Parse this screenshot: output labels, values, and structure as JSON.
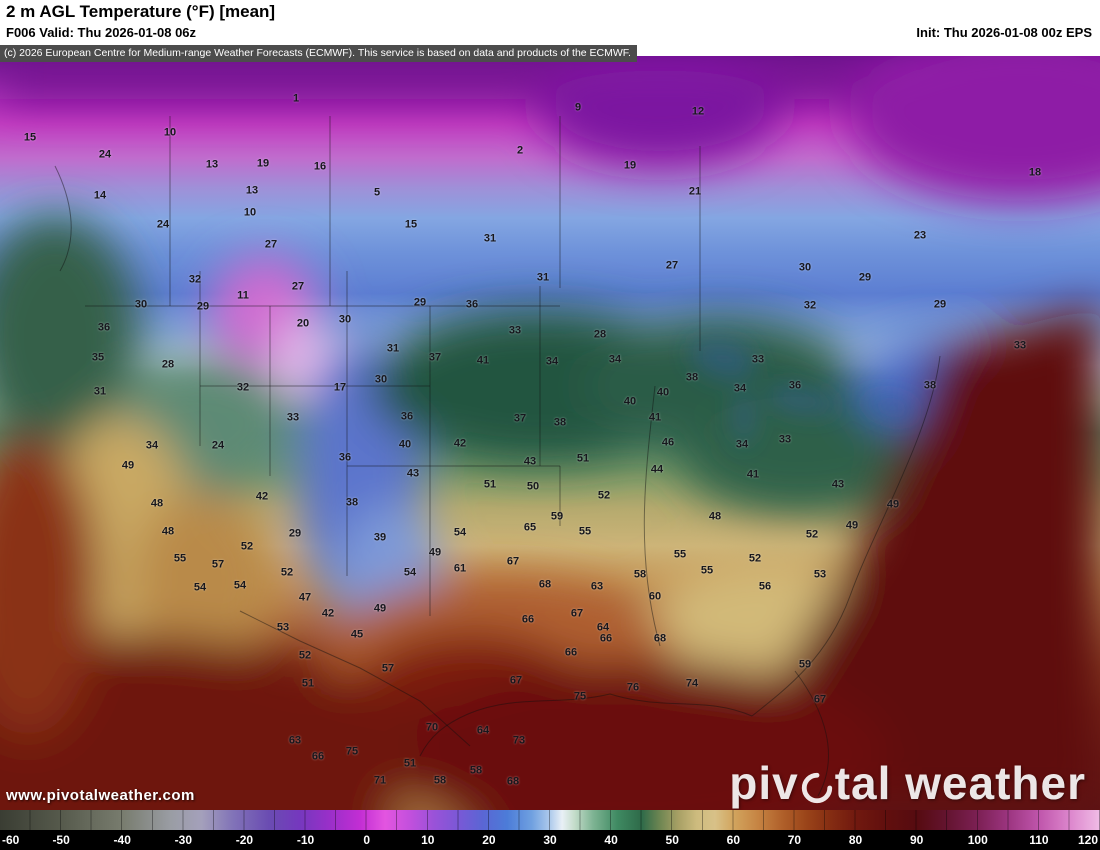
{
  "header": {
    "title": "2 m AGL Temperature (°F) [mean]",
    "valid": "F006 Valid: Thu 2026-01-08 06z",
    "init": "Init: Thu 2026-01-08 00z EPS"
  },
  "copyright": "(c) 2026 European Centre for Medium-range Weather Forecasts (ECMWF). This service is based on data and products of the ECMWF.",
  "watermark": {
    "brand_pre": "piv",
    "brand_post": "tal weather",
    "url": "www.pivotalweather.com"
  },
  "colorbar": {
    "min": -60,
    "max": 120,
    "ticks": [
      -60,
      -50,
      -40,
      -30,
      -20,
      -10,
      0,
      10,
      20,
      30,
      40,
      50,
      60,
      70,
      80,
      90,
      100,
      110,
      120
    ],
    "stops": [
      [
        -60,
        "#3a3d33"
      ],
      [
        -50,
        "#565a4c"
      ],
      [
        -40,
        "#787c6e"
      ],
      [
        -32,
        "#9a9da4"
      ],
      [
        -27,
        "#a4a0bb"
      ],
      [
        -22,
        "#8274b8"
      ],
      [
        -16,
        "#6a4cb2"
      ],
      [
        -11,
        "#7538be"
      ],
      [
        -6,
        "#9a2fc9"
      ],
      [
        -1,
        "#c32ed4"
      ],
      [
        3,
        "#e355e0"
      ],
      [
        7,
        "#c350dd"
      ],
      [
        11,
        "#9a52d8"
      ],
      [
        15,
        "#7a58d6"
      ],
      [
        19,
        "#5a66d4"
      ],
      [
        23,
        "#4c7cd8"
      ],
      [
        27,
        "#6fa0e0"
      ],
      [
        30,
        "#aecaec"
      ],
      [
        32,
        "#e9f0f6"
      ],
      [
        34,
        "#c4dcca"
      ],
      [
        37,
        "#7fb494"
      ],
      [
        41,
        "#3f8a62"
      ],
      [
        45,
        "#2e6a49"
      ],
      [
        48,
        "#6e8652"
      ],
      [
        51,
        "#a8a065"
      ],
      [
        54,
        "#cdbb7e"
      ],
      [
        57,
        "#d8c188"
      ],
      [
        60,
        "#d2a55e"
      ],
      [
        64,
        "#c68443"
      ],
      [
        68,
        "#b0602a"
      ],
      [
        72,
        "#9a4419"
      ],
      [
        76,
        "#842c12"
      ],
      [
        80,
        "#71190f"
      ],
      [
        85,
        "#610f0e"
      ],
      [
        90,
        "#560b10"
      ],
      [
        95,
        "#641430"
      ],
      [
        100,
        "#7c2054"
      ],
      [
        105,
        "#9c3580"
      ],
      [
        110,
        "#bf55ab"
      ],
      [
        115,
        "#dc85cc"
      ],
      [
        120,
        "#f0bce6"
      ]
    ]
  },
  "map": {
    "labels": [
      [
        1,
        296,
        43
      ],
      [
        9,
        578,
        52
      ],
      [
        12,
        698,
        56
      ],
      [
        15,
        30,
        82
      ],
      [
        10,
        170,
        77
      ],
      [
        24,
        105,
        99
      ],
      [
        13,
        212,
        109
      ],
      [
        19,
        263,
        108
      ],
      [
        16,
        320,
        111
      ],
      [
        2,
        520,
        95
      ],
      [
        19,
        630,
        110
      ],
      [
        14,
        100,
        140
      ],
      [
        13,
        252,
        135
      ],
      [
        5,
        377,
        137
      ],
      [
        21,
        695,
        136
      ],
      [
        10,
        250,
        157
      ],
      [
        24,
        163,
        169
      ],
      [
        15,
        411,
        169
      ],
      [
        18,
        1035,
        117
      ],
      [
        23,
        920,
        180
      ],
      [
        27,
        271,
        189
      ],
      [
        31,
        490,
        183
      ],
      [
        30,
        805,
        212
      ],
      [
        29,
        865,
        222
      ],
      [
        32,
        195,
        224
      ],
      [
        11,
        243,
        240
      ],
      [
        27,
        298,
        231
      ],
      [
        29,
        420,
        247
      ],
      [
        36,
        472,
        249
      ],
      [
        31,
        543,
        222
      ],
      [
        27,
        672,
        210
      ],
      [
        30,
        141,
        249
      ],
      [
        29,
        203,
        251
      ],
      [
        36,
        104,
        272
      ],
      [
        20,
        303,
        268
      ],
      [
        30,
        345,
        264
      ],
      [
        33,
        515,
        275
      ],
      [
        28,
        600,
        279
      ],
      [
        32,
        810,
        250
      ],
      [
        29,
        940,
        249
      ],
      [
        33,
        1020,
        290
      ],
      [
        35,
        98,
        302
      ],
      [
        28,
        168,
        309
      ],
      [
        31,
        393,
        293
      ],
      [
        37,
        435,
        302
      ],
      [
        41,
        483,
        305
      ],
      [
        34,
        552,
        306
      ],
      [
        34,
        615,
        304
      ],
      [
        38,
        692,
        322
      ],
      [
        33,
        758,
        304
      ],
      [
        31,
        100,
        336
      ],
      [
        32,
        243,
        332
      ],
      [
        17,
        340,
        332
      ],
      [
        30,
        381,
        324
      ],
      [
        40,
        630,
        346
      ],
      [
        40,
        663,
        337
      ],
      [
        34,
        740,
        333
      ],
      [
        36,
        795,
        330
      ],
      [
        38,
        930,
        330
      ],
      [
        33,
        293,
        362
      ],
      [
        36,
        407,
        361
      ],
      [
        37,
        520,
        363
      ],
      [
        38,
        560,
        367
      ],
      [
        41,
        655,
        362
      ],
      [
        34,
        152,
        390
      ],
      [
        24,
        218,
        390
      ],
      [
        36,
        345,
        402
      ],
      [
        40,
        405,
        389
      ],
      [
        42,
        460,
        388
      ],
      [
        43,
        530,
        406
      ],
      [
        51,
        583,
        403
      ],
      [
        46,
        668,
        387
      ],
      [
        34,
        742,
        389
      ],
      [
        33,
        785,
        384
      ],
      [
        49,
        128,
        410
      ],
      [
        43,
        413,
        418
      ],
      [
        44,
        657,
        414
      ],
      [
        41,
        753,
        419
      ],
      [
        48,
        157,
        448
      ],
      [
        42,
        262,
        441
      ],
      [
        38,
        352,
        447
      ],
      [
        51,
        490,
        429
      ],
      [
        50,
        533,
        431
      ],
      [
        52,
        604,
        440
      ],
      [
        43,
        838,
        429
      ],
      [
        49,
        893,
        449
      ],
      [
        48,
        168,
        476
      ],
      [
        29,
        295,
        478
      ],
      [
        39,
        380,
        482
      ],
      [
        54,
        460,
        477
      ],
      [
        59,
        557,
        461
      ],
      [
        55,
        585,
        476
      ],
      [
        65,
        530,
        472
      ],
      [
        48,
        715,
        461
      ],
      [
        52,
        812,
        479
      ],
      [
        49,
        852,
        470
      ],
      [
        55,
        180,
        503
      ],
      [
        57,
        218,
        509
      ],
      [
        52,
        247,
        491
      ],
      [
        49,
        435,
        497
      ],
      [
        61,
        460,
        513
      ],
      [
        67,
        513,
        506
      ],
      [
        55,
        680,
        499
      ],
      [
        55,
        707,
        515
      ],
      [
        52,
        755,
        503
      ],
      [
        54,
        200,
        532
      ],
      [
        54,
        240,
        530
      ],
      [
        52,
        287,
        517
      ],
      [
        54,
        410,
        517
      ],
      [
        68,
        545,
        529
      ],
      [
        63,
        597,
        531
      ],
      [
        58,
        640,
        519
      ],
      [
        53,
        820,
        519
      ],
      [
        47,
        305,
        542
      ],
      [
        42,
        328,
        558
      ],
      [
        49,
        380,
        553
      ],
      [
        60,
        655,
        541
      ],
      [
        56,
        765,
        531
      ],
      [
        53,
        283,
        572
      ],
      [
        45,
        357,
        579
      ],
      [
        66,
        528,
        564
      ],
      [
        67,
        577,
        558
      ],
      [
        64,
        603,
        572
      ],
      [
        66,
        606,
        583
      ],
      [
        68,
        660,
        583
      ],
      [
        52,
        305,
        600
      ],
      [
        57,
        388,
        613
      ],
      [
        67,
        516,
        625
      ],
      [
        66,
        571,
        597
      ],
      [
        59,
        805,
        609
      ],
      [
        51,
        308,
        628
      ],
      [
        75,
        580,
        641
      ],
      [
        76,
        633,
        632
      ],
      [
        74,
        692,
        628
      ],
      [
        67,
        820,
        644
      ],
      [
        70,
        432,
        672
      ],
      [
        63,
        295,
        685
      ],
      [
        66,
        318,
        701
      ],
      [
        64,
        483,
        675
      ],
      [
        73,
        519,
        685
      ],
      [
        75,
        352,
        696
      ],
      [
        51,
        410,
        708
      ],
      [
        58,
        440,
        725
      ],
      [
        58,
        476,
        715
      ],
      [
        68,
        513,
        726
      ],
      [
        71,
        380,
        725
      ]
    ]
  }
}
